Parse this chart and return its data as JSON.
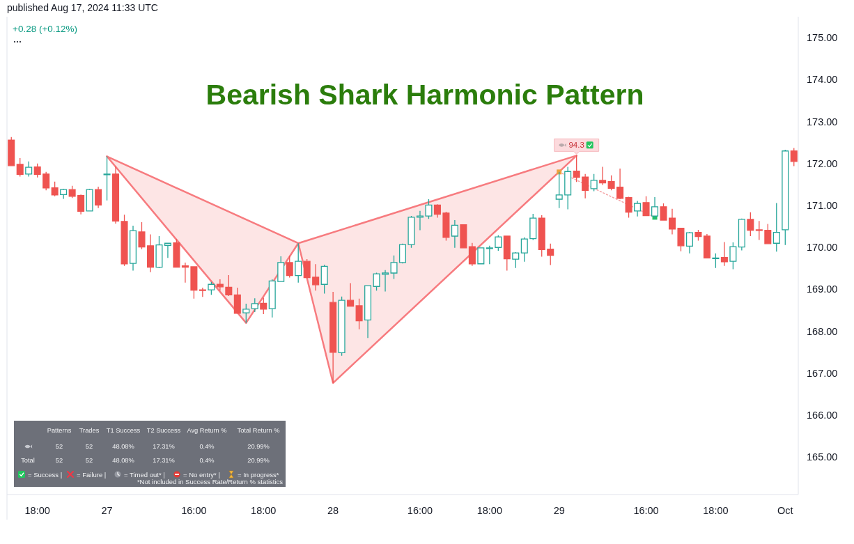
{
  "chart_data": [
    {
      "type": "candlestick",
      "title": "Bearish Shark Harmonic Pattern",
      "categories": [
        null,
        null,
        null,
        "18:00",
        null,
        null,
        null,
        null,
        null,
        null,
        null,
        "27",
        null,
        null,
        null,
        null,
        null,
        null,
        null,
        null,
        null,
        "16:00",
        null,
        null,
        null,
        null,
        null,
        null,
        null,
        "18:00",
        null,
        null,
        null,
        null,
        null,
        null,
        null,
        "28",
        null,
        null,
        null,
        null,
        null,
        null,
        null,
        null,
        null,
        "16:00",
        null,
        null,
        null,
        null,
        null,
        null,
        null,
        "18:00",
        null,
        null,
        null,
        null,
        null,
        null,
        null,
        "29",
        null,
        null,
        null,
        null,
        null,
        null,
        null,
        null,
        null,
        "16:00",
        null,
        null,
        null,
        null,
        null,
        null,
        null,
        "18:00",
        null,
        null,
        null,
        null,
        null,
        null,
        null,
        "Oct",
        null
      ],
      "ohlc": [
        [
          172.56,
          172.63,
          171.95,
          171.95
        ],
        [
          171.98,
          172.13,
          171.69,
          171.74
        ],
        [
          171.75,
          172.05,
          171.69,
          171.91
        ],
        [
          171.92,
          172.0,
          171.67,
          171.74
        ],
        [
          171.75,
          171.8,
          171.36,
          171.42
        ],
        [
          171.42,
          171.57,
          171.22,
          171.25
        ],
        [
          171.26,
          171.4,
          171.16,
          171.38
        ],
        [
          171.38,
          171.47,
          171.18,
          171.22
        ],
        [
          171.24,
          171.26,
          170.79,
          170.86
        ],
        [
          170.87,
          171.4,
          170.87,
          171.38
        ],
        [
          171.38,
          171.45,
          170.94,
          171.01
        ],
        [
          171.74,
          172.17,
          171.12,
          171.75
        ],
        [
          171.75,
          171.93,
          170.57,
          170.63
        ],
        [
          170.62,
          170.78,
          169.56,
          169.61
        ],
        [
          169.62,
          170.52,
          169.45,
          170.4
        ],
        [
          170.37,
          170.6,
          169.96,
          170.01
        ],
        [
          170.04,
          170.31,
          169.41,
          169.53
        ],
        [
          169.53,
          170.27,
          169.51,
          170.06
        ],
        [
          170.05,
          170.1,
          169.75,
          170.1
        ],
        [
          170.11,
          170.2,
          169.53,
          169.53
        ],
        [
          169.56,
          169.64,
          169.16,
          169.53
        ],
        [
          169.54,
          169.54,
          168.78,
          168.98
        ],
        [
          168.99,
          169.04,
          168.82,
          168.98
        ],
        [
          168.99,
          169.18,
          168.87,
          169.12
        ],
        [
          169.12,
          169.24,
          168.97,
          169.06
        ],
        [
          169.05,
          169.34,
          168.84,
          168.87
        ],
        [
          168.87,
          169.04,
          168.43,
          168.43
        ],
        [
          168.44,
          168.66,
          168.2,
          168.53
        ],
        [
          168.54,
          168.79,
          168.46,
          168.66
        ],
        [
          168.67,
          168.8,
          168.41,
          168.53
        ],
        [
          168.54,
          169.24,
          168.33,
          169.2
        ],
        [
          169.19,
          169.79,
          169.19,
          169.64
        ],
        [
          169.64,
          169.8,
          169.28,
          169.33
        ],
        [
          169.33,
          170.1,
          169.16,
          169.67
        ],
        [
          169.67,
          169.72,
          169.28,
          169.28
        ],
        [
          169.29,
          169.6,
          168.97,
          169.11
        ],
        [
          169.12,
          169.59,
          168.9,
          169.55
        ],
        [
          168.69,
          168.94,
          166.77,
          167.5
        ],
        [
          167.49,
          168.83,
          167.42,
          168.74
        ],
        [
          168.74,
          169.15,
          168.6,
          168.6
        ],
        [
          168.61,
          168.78,
          168.05,
          168.25
        ],
        [
          168.27,
          169.09,
          167.84,
          169.09
        ],
        [
          169.07,
          169.4,
          168.97,
          169.37
        ],
        [
          169.36,
          169.46,
          168.95,
          169.39
        ],
        [
          169.39,
          169.81,
          169.25,
          169.64
        ],
        [
          169.64,
          170.09,
          169.62,
          170.07
        ],
        [
          170.07,
          170.75,
          169.99,
          170.72
        ],
        [
          170.72,
          170.87,
          170.41,
          170.75
        ],
        [
          170.75,
          171.15,
          170.68,
          171.01
        ],
        [
          171.01,
          171.03,
          170.71,
          170.79
        ],
        [
          170.82,
          170.85,
          170.16,
          170.24
        ],
        [
          170.27,
          170.65,
          169.99,
          170.53
        ],
        [
          170.54,
          170.55,
          169.99,
          169.99
        ],
        [
          170.02,
          170.11,
          169.56,
          169.61
        ],
        [
          169.61,
          169.99,
          169.6,
          169.99
        ],
        [
          169.98,
          170.04,
          169.6,
          169.99
        ],
        [
          170.0,
          170.29,
          169.92,
          170.25
        ],
        [
          170.27,
          170.27,
          169.45,
          169.73
        ],
        [
          169.72,
          169.89,
          169.51,
          169.87
        ],
        [
          169.87,
          170.24,
          169.66,
          170.2
        ],
        [
          170.21,
          170.8,
          170.18,
          170.7
        ],
        [
          170.7,
          170.77,
          169.78,
          169.95
        ],
        [
          169.96,
          170.09,
          169.58,
          169.81
        ],
        [
          171.15,
          171.8,
          170.94,
          171.25
        ],
        [
          171.25,
          171.92,
          170.91,
          171.81
        ],
        [
          171.82,
          172.19,
          171.56,
          171.67
        ],
        [
          171.68,
          171.75,
          171.17,
          171.36
        ],
        [
          171.4,
          171.75,
          171.34,
          171.6
        ],
        [
          171.6,
          171.92,
          171.49,
          171.54
        ],
        [
          171.57,
          171.72,
          171.36,
          171.41
        ],
        [
          171.44,
          171.88,
          171.15,
          171.17
        ],
        [
          171.19,
          171.21,
          170.71,
          170.84
        ],
        [
          170.87,
          171.11,
          170.74,
          171.05
        ],
        [
          171.07,
          171.22,
          170.76,
          170.76
        ],
        [
          170.75,
          171.2,
          170.67,
          170.97
        ],
        [
          170.97,
          171.05,
          170.65,
          170.65
        ],
        [
          170.7,
          170.92,
          170.31,
          170.44
        ],
        [
          170.46,
          170.46,
          169.91,
          170.04
        ],
        [
          170.03,
          170.37,
          169.86,
          170.35
        ],
        [
          170.36,
          170.42,
          170.16,
          170.26
        ],
        [
          170.27,
          170.32,
          169.75,
          169.75
        ],
        [
          169.74,
          169.86,
          169.51,
          169.75
        ],
        [
          169.76,
          170.13,
          169.56,
          169.66
        ],
        [
          169.67,
          170.12,
          169.48,
          170.02
        ],
        [
          170.01,
          170.69,
          169.93,
          170.67
        ],
        [
          170.67,
          170.84,
          170.27,
          170.41
        ],
        [
          170.42,
          170.63,
          170.18,
          170.41
        ],
        [
          170.41,
          170.56,
          170.09,
          170.09
        ],
        [
          170.1,
          171.06,
          169.9,
          170.36
        ],
        [
          170.42,
          172.33,
          170.06,
          172.3
        ],
        [
          172.3,
          172.37,
          171.94,
          172.05
        ]
      ],
      "colors": [
        "#ef5350",
        "#ef5350",
        "#26a69a",
        "#ef5350",
        "#ef5350",
        "#ef5350",
        "#26a69a",
        "#ef5350",
        "#ef5350",
        "#26a69a",
        "#ef5350",
        "#26a69a",
        "#ef5350",
        "#ef5350",
        "#26a69a",
        "#ef5350",
        "#ef5350",
        "#26a69a",
        "#26a69a",
        "#ef5350",
        "#ef5350",
        "#ef5350",
        "#ef5350",
        "#26a69a",
        "#ef5350",
        "#ef5350",
        "#ef5350",
        "#26a69a",
        "#26a69a",
        "#ef5350",
        "#26a69a",
        "#26a69a",
        "#ef5350",
        "#26a69a",
        "#ef5350",
        "#ef5350",
        "#26a69a",
        "#ef5350",
        "#26a69a",
        "#ef5350",
        "#ef5350",
        "#26a69a",
        "#26a69a",
        "#26a69a",
        "#26a69a",
        "#26a69a",
        "#26a69a",
        "#26a69a",
        "#26a69a",
        "#ef5350",
        "#ef5350",
        "#26a69a",
        "#ef5350",
        "#ef5350",
        "#26a69a",
        "#26a69a",
        "#26a69a",
        "#ef5350",
        "#26a69a",
        "#26a69a",
        "#26a69a",
        "#ef5350",
        "#ef5350",
        "#26a69a",
        "#26a69a",
        "#ef5350",
        "#ef5350",
        "#26a69a",
        "#ef5350",
        "#ef5350",
        "#ef5350",
        "#ef5350",
        "#26a69a",
        "#ef5350",
        "#26a69a",
        "#ef5350",
        "#ef5350",
        "#ef5350",
        "#26a69a",
        "#ef5350",
        "#ef5350",
        "#26a69a",
        "#ef5350",
        "#26a69a",
        "#26a69a",
        "#ef5350",
        "#ef5350",
        "#ef5350",
        "#26a69a",
        "#26a69a",
        "#ef5350"
      ],
      "ylim": [
        164.11,
        175.5
      ],
      "yticks": [
        {
          "value": 165,
          "label": "165.00"
        },
        {
          "value": 166,
          "label": "166.00"
        },
        {
          "value": 167,
          "label": "167.00"
        },
        {
          "value": 168,
          "label": "168.00"
        },
        {
          "value": 169,
          "label": "169.00"
        },
        {
          "value": 170,
          "label": "170.00"
        },
        {
          "value": 171,
          "label": "171.00"
        },
        {
          "value": 172,
          "label": "172.00"
        },
        {
          "value": 173,
          "label": "173.00"
        },
        {
          "value": 174,
          "label": "174.00"
        },
        {
          "value": 175,
          "label": "175.00"
        }
      ],
      "series": [
        {
          "type": "line",
          "color": "#f77b7f",
          "values": [
            null,
            null,
            null,
            null,
            null,
            null,
            null,
            null,
            null,
            null,
            null,
            172.17,
            null,
            null,
            null,
            null,
            null,
            null,
            null,
            null,
            null,
            null,
            null,
            null,
            null,
            null,
            null,
            168.2,
            null,
            null,
            null,
            null,
            null,
            170.1,
            null,
            null,
            null,
            166.77,
            null,
            null,
            null,
            null,
            null,
            null,
            null,
            null,
            null,
            null,
            null,
            null,
            null,
            null,
            null,
            null,
            null,
            null,
            null,
            null,
            null,
            null,
            null,
            null,
            null,
            null,
            null,
            172.19,
            null,
            null,
            null,
            null,
            null,
            null,
            null,
            null,
            null,
            null,
            null,
            null,
            null,
            null,
            null,
            null,
            null,
            null,
            null,
            null,
            null,
            null,
            null,
            null,
            null
          ],
          "upper": [
            null,
            null,
            null,
            null,
            null,
            null,
            null,
            null,
            null,
            null,
            null,
            172.17,
            null,
            null,
            null,
            null,
            null,
            null,
            null,
            null,
            null,
            null,
            null,
            null,
            null,
            null,
            null,
            170.66,
            null,
            null,
            null,
            null,
            null,
            170.1,
            null,
            null,
            null,
            170.36,
            null,
            null,
            null,
            null,
            null,
            null,
            null,
            null,
            null,
            null,
            null,
            null,
            null,
            null,
            null,
            null,
            null,
            null,
            null,
            null,
            null,
            null,
            null,
            null,
            null,
            null,
            null,
            172.19,
            null,
            null,
            null,
            null,
            null,
            null,
            null,
            null,
            null,
            null,
            null,
            null,
            null,
            null,
            null,
            null,
            null,
            null,
            null,
            null,
            null,
            null,
            null,
            null,
            null
          ],
          "lower": [
            null,
            null,
            null,
            null,
            null,
            null,
            null,
            null,
            null,
            null,
            null,
            172.17,
            null,
            null,
            null,
            null,
            null,
            null,
            null,
            null,
            null,
            null,
            null,
            null,
            null,
            null,
            null,
            168.2,
            null,
            null,
            null,
            null,
            null,
            170.1,
            null,
            null,
            null,
            166.77,
            null,
            null,
            null,
            null,
            null,
            null,
            null,
            null,
            null,
            null,
            null,
            null,
            null,
            null,
            null,
            null,
            null,
            null,
            null,
            null,
            null,
            null,
            null,
            null,
            null,
            null,
            null,
            172.19,
            null,
            null,
            null,
            null,
            null,
            null,
            null,
            null,
            null,
            null,
            null,
            null,
            null,
            null,
            null,
            null,
            null,
            null,
            null,
            null,
            null,
            null,
            null,
            null,
            null
          ]
        },
        {
          "type": "line",
          "color": "#f77b7f",
          "values": [
            null,
            null,
            null,
            null,
            null,
            null,
            null,
            null,
            null,
            null,
            null,
            172.17,
            null,
            null,
            null,
            null,
            null,
            null,
            null,
            null,
            null,
            null,
            null,
            null,
            null,
            null,
            null,
            null,
            null,
            null,
            null,
            null,
            null,
            170.1,
            null,
            null,
            null,
            null,
            null,
            null,
            null,
            null,
            null,
            null,
            null,
            null,
            null,
            null,
            null,
            null,
            null,
            null,
            null,
            null,
            null,
            null,
            null,
            null,
            null,
            null,
            null,
            null,
            null,
            null,
            null,
            172.19,
            null,
            null,
            null,
            null,
            null,
            null,
            null,
            null,
            null,
            null,
            null,
            null,
            null,
            null,
            null,
            null,
            null,
            null,
            null,
            null,
            null,
            null,
            null,
            null,
            null
          ]
        },
        {
          "type": "line",
          "color": "#f4a3a6",
          "line_style": "dotted",
          "values": [
            null,
            null,
            null,
            null,
            null,
            null,
            null,
            null,
            null,
            null,
            null,
            null,
            null,
            null,
            null,
            null,
            null,
            null,
            null,
            null,
            null,
            null,
            null,
            null,
            null,
            null,
            null,
            null,
            null,
            null,
            null,
            null,
            null,
            null,
            null,
            null,
            null,
            null,
            null,
            null,
            null,
            null,
            null,
            null,
            null,
            null,
            null,
            null,
            null,
            null,
            null,
            null,
            null,
            null,
            null,
            null,
            null,
            null,
            null,
            null,
            null,
            null,
            null,
            171.8,
            null,
            null,
            null,
            null,
            null,
            null,
            null,
            null,
            null,
            null,
            170.72,
            null,
            null,
            null,
            null,
            null,
            null,
            null,
            null,
            null,
            null,
            null,
            null,
            null,
            null,
            null,
            null
          ]
        },
        {
          "type": "scatter",
          "color": "#f0a13c",
          "marker": "square",
          "values": [
            null,
            null,
            null,
            null,
            null,
            null,
            null,
            null,
            null,
            null,
            null,
            null,
            null,
            null,
            null,
            null,
            null,
            null,
            null,
            null,
            null,
            null,
            null,
            null,
            null,
            null,
            null,
            null,
            null,
            null,
            null,
            null,
            null,
            null,
            null,
            null,
            null,
            null,
            null,
            null,
            null,
            null,
            null,
            null,
            null,
            null,
            null,
            null,
            null,
            null,
            null,
            null,
            null,
            null,
            null,
            null,
            null,
            null,
            null,
            null,
            null,
            null,
            null,
            171.8,
            null,
            null,
            null,
            null,
            null,
            null,
            null,
            null,
            null,
            null,
            null,
            null,
            null,
            null,
            null,
            null,
            null,
            null,
            null,
            null,
            null,
            null,
            null,
            null,
            null,
            null,
            null
          ]
        },
        {
          "type": "scatter",
          "color": "#22c55e",
          "marker": "square",
          "values": [
            null,
            null,
            null,
            null,
            null,
            null,
            null,
            null,
            null,
            null,
            null,
            null,
            null,
            null,
            null,
            null,
            null,
            null,
            null,
            null,
            null,
            null,
            null,
            null,
            null,
            null,
            null,
            null,
            null,
            null,
            null,
            null,
            null,
            null,
            null,
            null,
            null,
            null,
            null,
            null,
            null,
            null,
            null,
            null,
            null,
            null,
            null,
            null,
            null,
            null,
            null,
            null,
            null,
            null,
            null,
            null,
            null,
            null,
            null,
            null,
            null,
            null,
            null,
            null,
            null,
            null,
            null,
            null,
            null,
            null,
            null,
            null,
            null,
            null,
            170.72,
            null,
            null,
            null,
            null,
            null,
            null,
            null,
            null,
            null,
            null,
            null,
            null,
            null,
            null,
            null,
            null
          ]
        }
      ],
      "annotations": [
        "published Aug 17, 2024 11:33 UTC",
        "+0.28 (+0.12%)",
        {
          "text": "94.3",
          "y": 172.19
        }
      ]
    },
    {
      "type": "other",
      "categories": [
        "Patterns",
        "Trades",
        "T1 Success",
        "T2 Success",
        "Avg Return %",
        "Total Return %"
      ],
      "y_categories": [
        null,
        "Total"
      ],
      "cell_labels": [
        [
          "52",
          "52",
          "48.08%",
          "17.31%",
          "0.4%",
          "20.99%"
        ],
        [
          "52",
          "52",
          "48.08%",
          "17.31%",
          "0.4%",
          "20.99%"
        ]
      ],
      "annotations": [
        "= Success |",
        "= Failure |",
        "= Timed out* |",
        "= No entry* |",
        "= In progress*",
        "*Not included in Success Rate/Return % statistics"
      ]
    }
  ]
}
